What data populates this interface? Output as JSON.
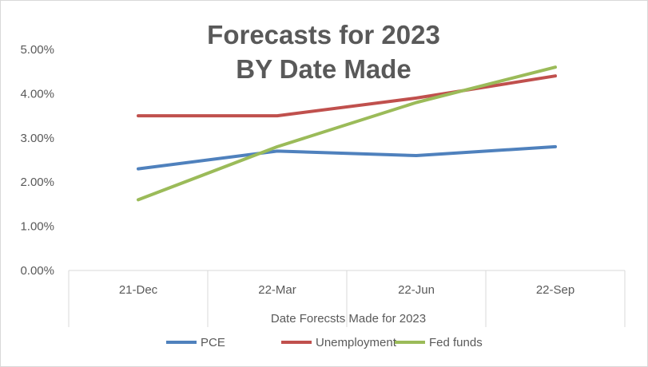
{
  "chart_data": {
    "type": "line",
    "title": "Forecasts for 2023",
    "subtitle": "BY Date Made",
    "xlabel": "Date Forecsts Made for 2023",
    "ylabel": "",
    "categories": [
      "21-Dec",
      "22-Mar",
      "22-Jun",
      "22-Sep"
    ],
    "ylim": [
      0,
      5
    ],
    "yticks": [
      "0.00%",
      "1.00%",
      "2.00%",
      "3.00%",
      "4.00%",
      "5.00%"
    ],
    "grid": false,
    "legend_position": "bottom",
    "series": [
      {
        "name": "PCE",
        "color": "#4f81bd",
        "values": [
          2.3,
          2.7,
          2.6,
          2.8
        ]
      },
      {
        "name": "Unemployment",
        "color": "#c0504d",
        "values": [
          3.5,
          3.5,
          3.9,
          4.4
        ]
      },
      {
        "name": "Fed funds",
        "color": "#9bbb59",
        "values": [
          1.6,
          2.8,
          3.8,
          4.6
        ]
      }
    ]
  }
}
